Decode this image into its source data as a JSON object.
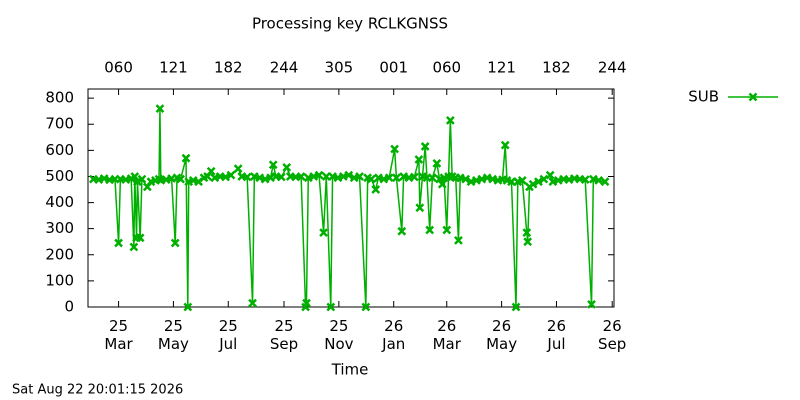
{
  "chart_data": {
    "type": "line",
    "title": "Processing key RCLKGNSS",
    "x_label": "Time",
    "footer": "Sat Aug 22 20:01:15 2026",
    "legend": "outside top right",
    "xlim": [
      25,
      610
    ],
    "ylim": [
      0,
      835
    ],
    "yticks": [
      0,
      100,
      200,
      300,
      400,
      500,
      600,
      700,
      800
    ],
    "xticks": [
      {
        "value": 59,
        "label": "25 Mar"
      },
      {
        "value": 120,
        "label": "25 May"
      },
      {
        "value": 181,
        "label": "25 Jul"
      },
      {
        "value": 243,
        "label": "25 Sep"
      },
      {
        "value": 304,
        "label": "25 Nov"
      },
      {
        "value": 365,
        "label": "26 Jan"
      },
      {
        "value": 424,
        "label": "26 Mar"
      },
      {
        "value": 485,
        "label": "26 May"
      },
      {
        "value": 546,
        "label": "26 Jul"
      },
      {
        "value": 608,
        "label": "26 Sep"
      }
    ],
    "x2ticks": [
      {
        "value": 59,
        "label": "060"
      },
      {
        "value": 120,
        "label": "121"
      },
      {
        "value": 181,
        "label": "182"
      },
      {
        "value": 243,
        "label": "244"
      },
      {
        "value": 304,
        "label": "305"
      },
      {
        "value": 365,
        "label": "001"
      },
      {
        "value": 424,
        "label": "060"
      },
      {
        "value": 485,
        "label": "121"
      },
      {
        "value": 546,
        "label": "182"
      },
      {
        "value": 608,
        "label": "244"
      }
    ],
    "x": [
      31,
      37,
      43,
      49,
      55,
      59,
      61,
      67,
      73,
      76,
      77,
      79,
      80,
      83,
      85,
      91,
      95,
      100,
      104,
      105,
      106,
      112,
      118,
      122,
      124,
      128,
      134,
      136,
      137,
      142,
      148,
      154,
      158,
      162,
      166,
      172,
      178,
      184,
      192,
      196,
      202,
      208,
      210,
      216,
      222,
      228,
      231,
      234,
      240,
      246,
      250,
      256,
      262,
      267,
      268,
      270,
      276,
      282,
      287,
      290,
      295,
      297,
      303,
      309,
      315,
      321,
      327,
      334,
      336,
      340,
      345,
      348,
      354,
      360,
      366,
      368,
      374,
      376,
      382,
      388,
      393,
      394,
      397,
      400,
      402,
      405,
      408,
      413,
      416,
      419,
      421,
      424,
      426,
      428,
      430,
      434,
      437,
      439,
      445,
      451,
      457,
      463,
      469,
      475,
      481,
      486,
      489,
      491,
      496,
      501,
      503,
      508,
      513,
      514,
      516,
      520,
      526,
      532,
      539,
      542,
      548,
      554,
      560,
      566,
      572,
      578,
      585,
      587,
      593,
      600
    ],
    "series": [
      {
        "name": "SUB",
        "color": "#00b000",
        "values": [
          490,
          488,
          492,
          487,
          490,
          245,
          490,
          488,
          492,
          230,
          500,
          265,
          480,
          265,
          490,
          460,
          480,
          485,
          490,
          760,
          485,
          488,
          492,
          245,
          495,
          490,
          570,
          0,
          480,
          485,
          480,
          495,
          500,
          520,
          495,
          500,
          498,
          505,
          530,
          500,
          498,
          15,
          500,
          495,
          490,
          495,
          545,
          500,
          498,
          535,
          500,
          498,
          500,
          0,
          15,
          495,
          500,
          505,
          285,
          500,
          0,
          500,
          495,
          500,
          505,
          495,
          500,
          0,
          495,
          490,
          450,
          495,
          490,
          495,
          605,
          495,
          290,
          500,
          495,
          498,
          565,
          380,
          500,
          615,
          495,
          295,
          495,
          550,
          490,
          470,
          495,
          295,
          500,
          715,
          500,
          495,
          255,
          495,
          490,
          480,
          485,
          490,
          495,
          490,
          485,
          488,
          620,
          485,
          480,
          0,
          480,
          485,
          285,
          250,
          460,
          470,
          480,
          490,
          505,
          480,
          485,
          490,
          488,
          492,
          490,
          488,
          10,
          490,
          485,
          480
        ]
      }
    ]
  }
}
